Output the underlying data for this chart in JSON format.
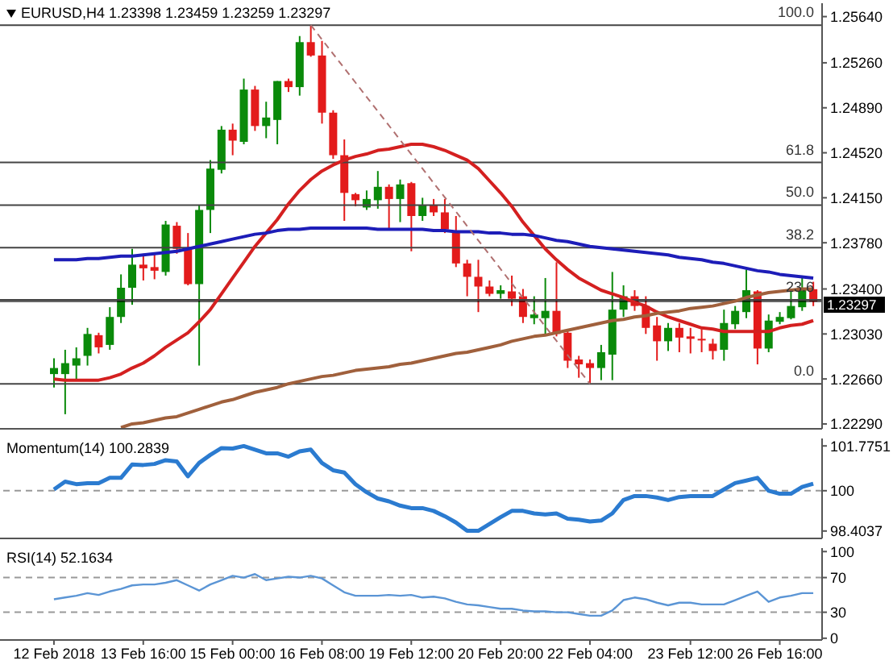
{
  "chart_data": [
    {
      "type": "candlestick",
      "title": "EURUSD,H4 1.23398 1.23459 1.23259 1.23297",
      "categories": [
        null,
        null,
        null,
        null,
        null,
        null,
        null,
        null,
        null,
        null,
        null,
        null,
        null,
        null,
        null,
        null,
        null,
        null,
        null,
        null,
        null,
        null,
        null,
        null,
        null,
        null,
        null,
        null,
        null,
        null,
        null,
        null,
        null,
        null,
        null,
        null,
        null,
        null,
        null,
        null,
        null,
        null,
        null,
        null,
        null,
        null,
        null,
        null,
        null,
        null,
        null,
        null,
        null,
        null,
        null,
        null,
        null,
        null,
        null,
        null,
        null,
        null,
        null,
        null,
        null,
        null,
        null,
        null,
        null
      ],
      "ohlc": [
        [
          1.227,
          1.2283,
          1.2259,
          1.2275
        ],
        [
          1.227,
          1.229,
          1.2237,
          1.2279
        ],
        [
          1.2277,
          1.2292,
          1.2266,
          1.2283
        ],
        [
          1.2285,
          1.2308,
          1.2277,
          1.2303
        ],
        [
          1.2302,
          1.2304,
          1.2287,
          1.2292
        ],
        [
          1.2294,
          1.2325,
          1.229,
          1.2317
        ],
        [
          1.2317,
          1.2352,
          1.2312,
          1.2341
        ],
        [
          1.2341,
          1.2373,
          1.2327,
          1.236
        ],
        [
          1.236,
          1.2369,
          1.2347,
          1.2357
        ],
        [
          1.2358,
          1.237,
          1.2348,
          1.2355
        ],
        [
          1.2354,
          1.2396,
          1.2351,
          1.2393
        ],
        [
          1.2392,
          1.2395,
          1.2369,
          1.2373
        ],
        [
          1.2373,
          1.2386,
          1.2343,
          1.2344
        ],
        [
          1.2344,
          1.2409,
          1.2277,
          1.2405
        ],
        [
          1.2405,
          1.2446,
          1.2386,
          1.2439
        ],
        [
          1.2438,
          1.2474,
          1.2435,
          1.2471
        ],
        [
          1.2471,
          1.2476,
          1.245,
          1.2462
        ],
        [
          1.2461,
          1.2513,
          1.2459,
          1.2504
        ],
        [
          1.2504,
          1.2507,
          1.247,
          1.2474
        ],
        [
          1.2474,
          1.2494,
          1.2464,
          1.2481
        ],
        [
          1.2479,
          1.2511,
          1.2459,
          1.2511
        ],
        [
          1.2511,
          1.2513,
          1.2502,
          1.2506
        ],
        [
          1.2506,
          1.2548,
          1.2499,
          1.2543
        ],
        [
          1.2543,
          1.2557,
          1.2531,
          1.2532
        ],
        [
          1.2532,
          1.2544,
          1.2476,
          1.2485
        ],
        [
          1.2485,
          1.2487,
          1.2447,
          1.245
        ],
        [
          1.245,
          1.2463,
          1.2396,
          1.2419
        ],
        [
          1.2418,
          1.2419,
          1.2408,
          1.2413
        ],
        [
          1.2407,
          1.2421,
          1.2405,
          1.2414
        ],
        [
          1.2413,
          1.2437,
          1.2406,
          1.2424
        ],
        [
          1.2424,
          1.2426,
          1.239,
          1.2414
        ],
        [
          1.2414,
          1.243,
          1.2395,
          1.2426
        ],
        [
          1.2427,
          1.2428,
          1.2371,
          1.24
        ],
        [
          1.24,
          1.2415,
          1.2396,
          1.2409
        ],
        [
          1.2409,
          1.2414,
          1.24,
          1.2403
        ],
        [
          1.2403,
          1.2414,
          1.2386,
          1.2389
        ],
        [
          1.2387,
          1.24,
          1.2358,
          1.2361
        ],
        [
          1.2361,
          1.2364,
          1.2334,
          1.235
        ],
        [
          1.235,
          1.2364,
          1.2321,
          1.2342
        ],
        [
          1.2342,
          1.2347,
          1.2334,
          1.2336
        ],
        [
          1.2336,
          1.2343,
          1.2332,
          1.2339
        ],
        [
          1.2338,
          1.2351,
          1.2326,
          1.2332
        ],
        [
          1.2334,
          1.234,
          1.2312,
          1.2317
        ],
        [
          1.2316,
          1.2334,
          1.2311,
          1.2319
        ],
        [
          1.2316,
          1.2349,
          1.2303,
          1.2322
        ],
        [
          1.2322,
          1.2362,
          1.2301,
          1.2303
        ],
        [
          1.2304,
          1.2307,
          1.2275,
          1.2281
        ],
        [
          1.2282,
          1.2285,
          1.2267,
          1.2278
        ],
        [
          1.2279,
          1.2282,
          1.2262,
          1.2275
        ],
        [
          1.2275,
          1.2294,
          1.2265,
          1.2288
        ],
        [
          1.2286,
          1.2354,
          1.2265,
          1.2323
        ],
        [
          1.2323,
          1.2343,
          1.2317,
          1.2334
        ],
        [
          1.2334,
          1.2339,
          1.2322,
          1.2326
        ],
        [
          1.2326,
          1.2334,
          1.2303,
          1.2308
        ],
        [
          1.231,
          1.2317,
          1.2281,
          1.2297
        ],
        [
          1.2297,
          1.2312,
          1.2289,
          1.2308
        ],
        [
          1.2308,
          1.2312,
          1.2288,
          1.23
        ],
        [
          1.2301,
          1.2308,
          1.2287,
          1.2299
        ],
        [
          1.2299,
          1.2307,
          1.2288,
          1.2298
        ],
        [
          1.2295,
          1.2299,
          1.2282,
          1.2289
        ],
        [
          1.229,
          1.2323,
          1.2281,
          1.2312
        ],
        [
          1.2311,
          1.2326,
          1.2307,
          1.2322
        ],
        [
          1.2321,
          1.2356,
          1.2316,
          1.2339
        ],
        [
          1.2338,
          1.2339,
          1.2278,
          1.2291
        ],
        [
          1.2291,
          1.2319,
          1.2288,
          1.2314
        ],
        [
          1.2313,
          1.2321,
          1.2311,
          1.2317
        ],
        [
          1.2316,
          1.2339,
          1.2315,
          1.2326
        ],
        [
          1.2325,
          1.2351,
          1.2322,
          1.234
        ],
        [
          1.23398,
          1.23459,
          1.23259,
          1.23297
        ]
      ],
      "colors": [
        "#0a8a0a",
        "#0a8a0a",
        "#0a8a0a",
        "#0a8a0a",
        "#e31b1b",
        "#0a8a0a",
        "#0a8a0a",
        "#0a8a0a",
        "#e31b1b",
        "#e31b1b",
        "#0a8a0a",
        "#e31b1b",
        "#e31b1b",
        "#0a8a0a",
        "#0a8a0a",
        "#0a8a0a",
        "#e31b1b",
        "#0a8a0a",
        "#e31b1b",
        "#0a8a0a",
        "#0a8a0a",
        "#e31b1b",
        "#0a8a0a",
        "#e31b1b",
        "#e31b1b",
        "#e31b1b",
        "#e31b1b",
        "#e31b1b",
        "#0a8a0a",
        "#0a8a0a",
        "#e31b1b",
        "#0a8a0a",
        "#e31b1b",
        "#0a8a0a",
        "#e31b1b",
        "#e31b1b",
        "#e31b1b",
        "#e31b1b",
        "#e31b1b",
        "#e31b1b",
        "#0a8a0a",
        "#e31b1b",
        "#e31b1b",
        "#0a8a0a",
        "#0a8a0a",
        "#e31b1b",
        "#e31b1b",
        "#e31b1b",
        "#e31b1b",
        "#0a8a0a",
        "#0a8a0a",
        "#0a8a0a",
        "#e31b1b",
        "#e31b1b",
        "#e31b1b",
        "#0a8a0a",
        "#e31b1b",
        "#e31b1b",
        "#e31b1b",
        "#e31b1b",
        "#0a8a0a",
        "#0a8a0a",
        "#0a8a0a",
        "#e31b1b",
        "#0a8a0a",
        "#0a8a0a",
        "#0a8a0a",
        "#0a8a0a",
        "#e31b1b"
      ],
      "series": [
        {
          "type": "line",
          "color": "#d42020",
          "values": [
            1.2266,
            1.2265,
            1.2265,
            1.2265,
            1.2265,
            1.2267,
            1.227,
            1.2275,
            1.2279,
            1.2285,
            1.2292,
            1.2298,
            1.2304,
            1.2313,
            1.2323,
            1.2336,
            1.2349,
            1.2362,
            1.2375,
            1.2386,
            1.2397,
            1.241,
            1.2421,
            1.243,
            1.2437,
            1.2442,
            1.2446,
            1.2449,
            1.2451,
            1.2454,
            1.2455,
            1.2457,
            1.2459,
            1.2459,
            1.2457,
            1.2454,
            1.245,
            1.2446,
            1.2439,
            1.2429,
            1.2419,
            1.2408,
            1.2395,
            1.2384,
            1.2373,
            1.2364,
            1.2356,
            1.2349,
            1.2344,
            1.2339,
            1.2336,
            1.2333,
            1.2329,
            1.2326,
            1.2321,
            1.2317,
            1.2314,
            1.2311,
            1.2308,
            1.2307,
            1.2305,
            1.2305,
            1.2305,
            1.2305,
            1.2305,
            1.2308,
            1.231,
            1.2311,
            1.2314
          ]
        },
        {
          "type": "line",
          "color": "#1d1db8",
          "values": [
            1.2364,
            1.2364,
            1.2364,
            1.2365,
            1.2365,
            1.2366,
            1.2367,
            1.2367,
            1.2368,
            1.2369,
            1.237,
            1.2371,
            1.2373,
            1.2375,
            1.2377,
            1.2379,
            1.2381,
            1.2383,
            1.2385,
            1.2386,
            1.2388,
            1.2389,
            1.2389,
            1.239,
            1.239,
            1.239,
            1.239,
            1.239,
            1.239,
            1.2389,
            1.2389,
            1.2389,
            1.2389,
            1.2389,
            1.2388,
            1.2388,
            1.2387,
            1.2387,
            1.2387,
            1.2386,
            1.2386,
            1.2385,
            1.2385,
            1.2384,
            1.2382,
            1.238,
            1.2379,
            1.2377,
            1.2375,
            1.2374,
            1.2373,
            1.2372,
            1.2371,
            1.237,
            1.2369,
            1.2368,
            1.2366,
            1.2365,
            1.2364,
            1.2362,
            1.2361,
            1.2359,
            1.2357,
            1.2355,
            1.2354,
            1.2352,
            1.2351,
            1.235,
            1.2349
          ]
        },
        {
          "type": "line",
          "color": "#a0603c",
          "values": [
            null,
            null,
            null,
            null,
            null,
            null,
            1.2226,
            1.2229,
            1.223,
            1.2232,
            1.2234,
            1.2235,
            1.2238,
            1.2241,
            1.2244,
            1.2247,
            1.2249,
            1.2252,
            1.2255,
            1.2257,
            1.2259,
            1.2262,
            1.2264,
            1.2266,
            1.2268,
            1.2269,
            1.2271,
            1.2273,
            1.2274,
            1.2275,
            1.2276,
            1.2278,
            1.2279,
            1.2281,
            1.2283,
            1.2285,
            1.2287,
            1.2288,
            1.229,
            1.2292,
            1.2294,
            1.2297,
            1.2299,
            1.2301,
            1.2302,
            1.2304,
            1.2306,
            1.2308,
            1.231,
            1.2312,
            1.2314,
            1.2315,
            1.2317,
            1.2318,
            1.232,
            1.2321,
            1.2322,
            1.2324,
            1.2325,
            1.2326,
            1.2328,
            1.233,
            1.2333,
            1.2335,
            1.2337,
            1.2338,
            1.2339,
            1.234,
            1.234
          ]
        },
        {
          "type": "line",
          "color": "#b07070",
          "line_style": "dashed",
          "values": [
            null,
            null,
            null,
            null,
            null,
            null,
            null,
            null,
            null,
            null,
            null,
            null,
            null,
            null,
            null,
            null,
            null,
            null,
            null,
            null,
            null,
            null,
            null,
            1.2557,
            null,
            null,
            null,
            null,
            null,
            null,
            null,
            null,
            null,
            null,
            null,
            null,
            null,
            null,
            null,
            null,
            null,
            null,
            null,
            null,
            null,
            null,
            null,
            null,
            1.2262,
            null,
            null,
            null,
            null,
            null,
            null,
            null,
            null,
            null,
            null,
            null,
            null,
            null,
            null,
            null,
            null,
            null,
            null,
            null,
            null
          ]
        }
      ],
      "ylim": [
        1.2225,
        1.2575
      ],
      "yticks": [
        {
          "value": 1.2564,
          "label": "1.25640"
        },
        {
          "value": 1.2526,
          "label": "1.25260"
        },
        {
          "value": 1.2489,
          "label": "1.24890"
        },
        {
          "value": 1.2452,
          "label": "1.24520"
        },
        {
          "value": 1.2415,
          "label": "1.24150"
        },
        {
          "value": 1.2378,
          "label": "1.23780"
        },
        {
          "value": 1.234,
          "label": "1.23400"
        },
        {
          "value": 1.2303,
          "label": "1.23030"
        },
        {
          "value": 1.2266,
          "label": "1.22660"
        },
        {
          "value": 1.2229,
          "label": "1.22290"
        }
      ],
      "ref_lines": [
        {
          "axis": "y",
          "value": 1.2557
        },
        {
          "axis": "y",
          "value": 1.2444
        },
        {
          "axis": "y",
          "value": 1.2409
        },
        {
          "axis": "y",
          "value": 1.2374
        },
        {
          "axis": "y",
          "value": 1.2331
        },
        {
          "axis": "y",
          "value": 1.2262
        },
        {
          "axis": "y",
          "value": 1.23297,
          "label": "1.23297",
          "color": "#000000"
        }
      ],
      "annotations": [
        {
          "text": "100.0",
          "y": 1.2557
        },
        {
          "text": "61.8",
          "y": 1.2444
        },
        {
          "text": "50.0",
          "y": 1.2409
        },
        {
          "text": "38.2",
          "y": 1.2374
        },
        {
          "text": "23.6",
          "y": 1.2331
        },
        {
          "text": "0.0",
          "y": 1.2262
        }
      ],
      "tick_labels": "y"
    },
    {
      "type": "line",
      "title": "Momentum(14) 100.2839",
      "categories": [
        null,
        null,
        null,
        null,
        null,
        null,
        null,
        null,
        null,
        null,
        null,
        null,
        null,
        null,
        null,
        null,
        null,
        null,
        null,
        null,
        null,
        null,
        null,
        null,
        null,
        null,
        null,
        null,
        null,
        null,
        null,
        null,
        null,
        null,
        null,
        null,
        null,
        null,
        null,
        null,
        null,
        null,
        null,
        null,
        null,
        null,
        null,
        null,
        null,
        null,
        null,
        null,
        null,
        null,
        null,
        null,
        null,
        null,
        null,
        null,
        null,
        null,
        null,
        null,
        null,
        null,
        null,
        null,
        null
      ],
      "series": [
        {
          "color": "#2b7bd0",
          "values": [
            100.05,
            100.36,
            100.26,
            100.3,
            100.3,
            100.51,
            100.51,
            101.04,
            101.02,
            101.06,
            101.21,
            101.16,
            100.57,
            101.1,
            101.42,
            101.69,
            101.67,
            101.77,
            101.63,
            101.48,
            101.48,
            101.35,
            101.56,
            101.63,
            101.1,
            100.81,
            100.72,
            100.26,
            99.94,
            99.69,
            99.58,
            99.41,
            99.31,
            99.31,
            99.2,
            98.99,
            98.74,
            98.41,
            98.41,
            98.68,
            98.95,
            99.2,
            99.2,
            99.1,
            99.06,
            99.1,
            98.89,
            98.85,
            98.78,
            98.82,
            99.1,
            99.63,
            99.79,
            99.79,
            99.73,
            99.63,
            99.75,
            99.79,
            99.79,
            99.79,
            100.05,
            100.3,
            100.4,
            100.51,
            100.0,
            99.88,
            99.88,
            100.15,
            100.28
          ]
        }
      ],
      "ylim": [
        98.11,
        102.07
      ],
      "yticks": [
        101.7751,
        100,
        98.4037
      ],
      "ref_lines": [
        {
          "axis": "y",
          "value": 100,
          "line_style": "dashed",
          "color": "#999999"
        }
      ],
      "tick_labels": "y"
    },
    {
      "type": "line",
      "title": "RSI(14) 52.1634",
      "categories": [
        "12 Feb 2018",
        null,
        null,
        null,
        null,
        null,
        null,
        null,
        "13 Feb 16:00",
        null,
        null,
        null,
        null,
        null,
        null,
        null,
        "15 Feb 00:00",
        null,
        null,
        null,
        null,
        null,
        null,
        null,
        "16 Feb 08:00",
        null,
        null,
        null,
        null,
        null,
        null,
        null,
        "19 Feb 12:00",
        null,
        null,
        null,
        null,
        null,
        null,
        null,
        "20 Feb 20:00",
        null,
        null,
        null,
        null,
        null,
        null,
        null,
        "22 Feb 04:00",
        null,
        null,
        null,
        null,
        null,
        null,
        null,
        null,
        "23 Feb 12:00",
        null,
        null,
        null,
        null,
        null,
        null,
        null,
        "26 Feb 16:00",
        null,
        null,
        null
      ],
      "series": [
        {
          "color": "#5b95d5",
          "values": [
            45,
            47,
            49,
            52,
            50,
            54,
            57,
            61,
            62,
            62,
            64,
            67,
            61,
            55,
            62,
            67,
            72,
            70,
            74,
            67,
            69,
            71,
            70,
            72,
            69,
            61,
            53,
            49,
            49,
            49,
            50,
            49,
            50,
            47,
            48,
            46,
            42,
            39,
            38,
            36,
            34,
            34,
            32,
            31,
            31,
            30,
            30,
            28,
            26,
            26,
            32,
            44,
            47,
            45,
            41,
            38,
            41,
            41,
            39,
            39,
            39,
            44,
            49,
            54,
            42,
            47,
            49,
            52,
            52
          ]
        }
      ],
      "ylim": [
        -2,
        104
      ],
      "yticks": [
        100,
        70,
        30,
        0
      ],
      "ref_lines": [
        {
          "axis": "y",
          "value": 70,
          "line_style": "dashed",
          "color": "#999999"
        },
        {
          "axis": "y",
          "value": 30,
          "line_style": "dashed",
          "color": "#999999"
        }
      ]
    }
  ]
}
